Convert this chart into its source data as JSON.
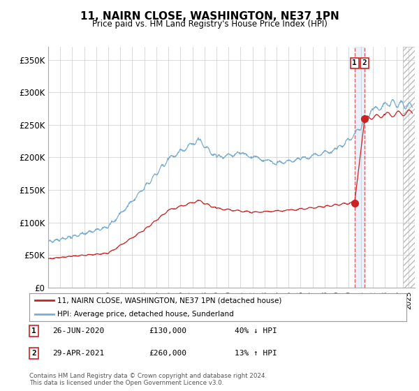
{
  "title": "11, NAIRN CLOSE, WASHINGTON, NE37 1PN",
  "subtitle": "Price paid vs. HM Land Registry's House Price Index (HPI)",
  "ylabel_ticks": [
    "£0",
    "£50K",
    "£100K",
    "£150K",
    "£200K",
    "£250K",
    "£300K",
    "£350K"
  ],
  "ytick_vals": [
    0,
    50000,
    100000,
    150000,
    200000,
    250000,
    300000,
    350000
  ],
  "ylim": [
    0,
    370000
  ],
  "xlim_start": 1995.0,
  "xlim_end": 2025.5,
  "hpi_color": "#7aadd4",
  "price_color": "#cc2222",
  "vline_color": "#dd5555",
  "marker1_date": 2020.49,
  "marker1_price": 130000,
  "marker2_date": 2021.33,
  "marker2_price": 260000,
  "legend_label1": "11, NAIRN CLOSE, WASHINGTON, NE37 1PN (detached house)",
  "legend_label2": "HPI: Average price, detached house, Sunderland",
  "ann1_num": "1",
  "ann2_num": "2",
  "ann1_date_str": "26-JUN-2020",
  "ann1_price_str": "£130,000",
  "ann1_pct_str": "40% ↓ HPI",
  "ann2_date_str": "29-APR-2021",
  "ann2_price_str": "£260,000",
  "ann2_pct_str": "13% ↑ HPI",
  "footer": "Contains HM Land Registry data © Crown copyright and database right 2024.\nThis data is licensed under the Open Government Licence v3.0.",
  "background_color": "#ffffff",
  "grid_color": "#cccccc",
  "hatch_start": 2024.5,
  "shade_between_vlines_color": "#ddeeff"
}
